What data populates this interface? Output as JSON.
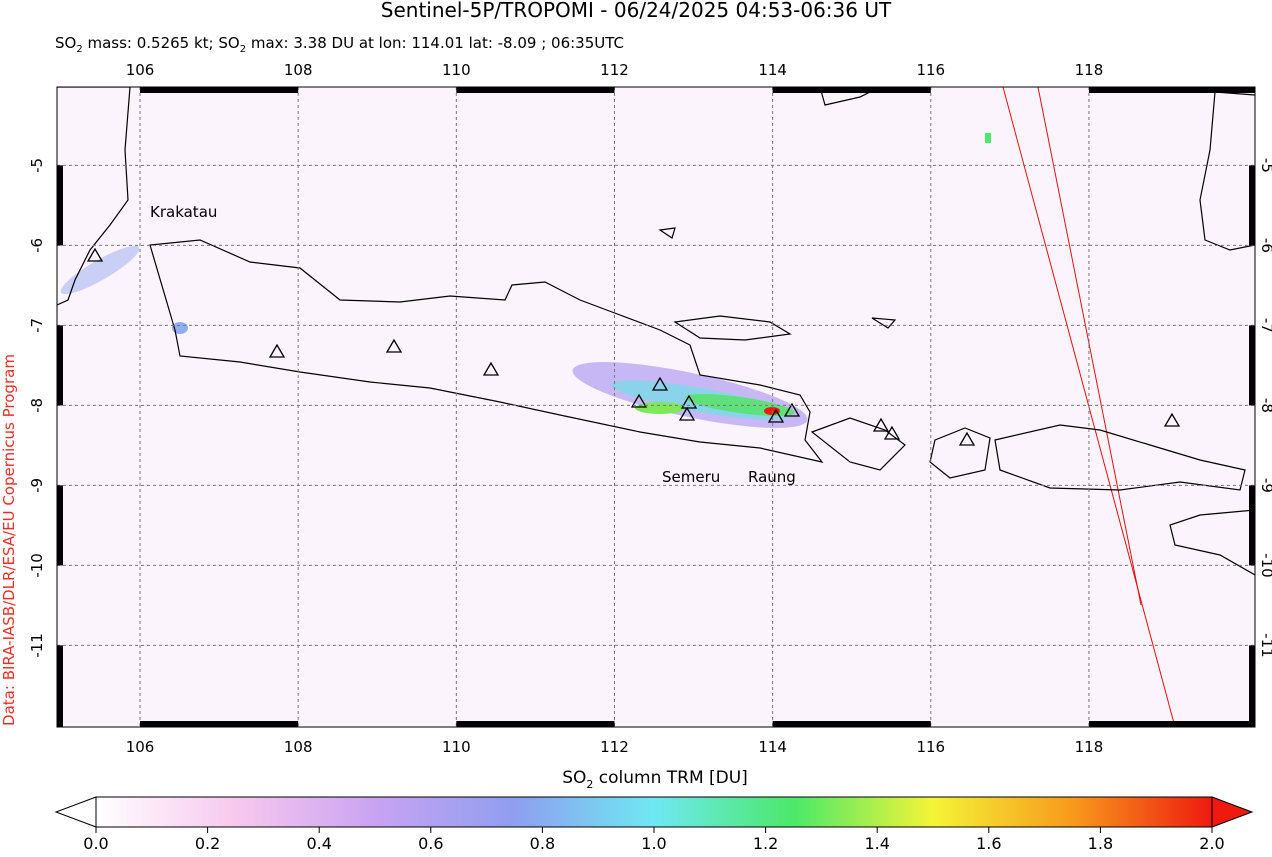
{
  "title": "Sentinel-5P/TROPOMI - 06/24/2025 04:53-06:36 UT",
  "subtitle": [
    "SO",
    "2",
    " mass: 0.5265 kt; SO",
    "2",
    " max: 3.38 DU at lon: 114.01 lat: -8.09 ; 06:35UTC"
  ],
  "credit": "Data: BIRA-IASB/DLR/ESA/EU Copernicus Program",
  "map": {
    "xlim": [
      104.95,
      120.1
    ],
    "ylim": [
      -12.02,
      -4.02
    ],
    "xticks": [
      106,
      108,
      110,
      112,
      114,
      116,
      118
    ],
    "yticks": [
      -5,
      -6,
      -7,
      -8,
      -9,
      -10,
      -11
    ],
    "grid": true
  },
  "volcano_labels": [
    "Krakatau",
    "Semeru",
    "Raung"
  ],
  "colorbar": {
    "label": [
      "SO",
      "2",
      " column TRM [DU]"
    ],
    "lim": [
      0,
      2
    ],
    "ticks": [
      {
        "value": 0,
        "label": "0.0"
      },
      0.2,
      0.4,
      0.6,
      0.8,
      {
        "value": 1,
        "label": "1.0"
      },
      1.2,
      1.4,
      1.6,
      1.8,
      {
        "value": 2,
        "label": "2.0"
      }
    ],
    "colors": [
      "#ffffff",
      "#f7c8ee",
      "#c9a3f2",
      "#8f9ef0",
      "#6fe8f2",
      "#4be86a",
      "#f4f437",
      "#f79a1c",
      "#ee1a10"
    ]
  }
}
